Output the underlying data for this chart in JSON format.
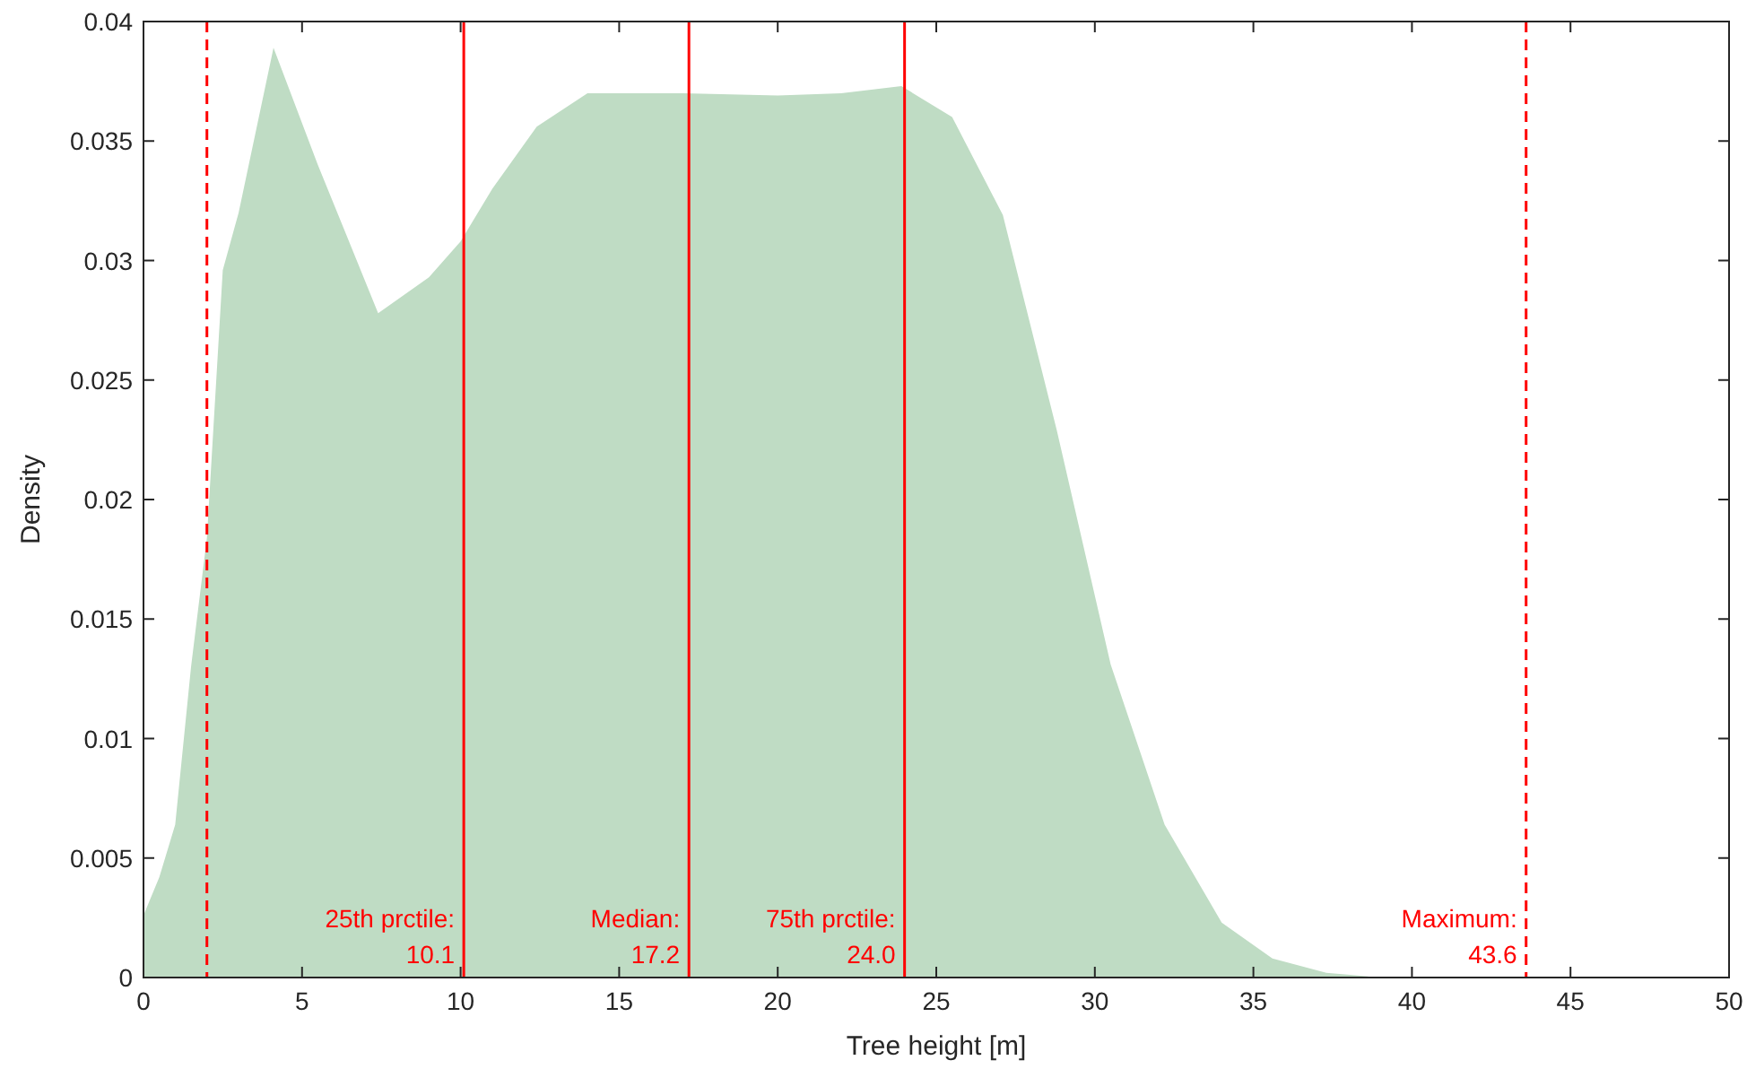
{
  "chart_data": {
    "type": "area",
    "xlabel": "Tree height [m]",
    "ylabel": "Density",
    "xlim": [
      0,
      50
    ],
    "xticks": [
      0,
      5,
      10,
      15,
      20,
      25,
      30,
      35,
      40,
      45,
      50
    ],
    "ylim": [
      0,
      0.04
    ],
    "yticks": [
      0,
      0.005,
      0.01,
      0.015,
      0.02,
      0.025,
      0.03,
      0.035,
      0.04
    ],
    "grid": false,
    "series": [
      {
        "color": "#bfdcc4",
        "x": [
          0,
          0.5,
          1,
          1.5,
          2,
          2.5,
          3,
          4.1,
          5.5,
          7.4,
          9,
          10,
          11,
          12.4,
          14,
          17,
          20,
          22,
          23.9,
          25.5,
          27.1,
          28.8,
          30.5,
          32.2,
          34,
          35.6,
          37.3,
          39,
          42,
          50
        ],
        "values": [
          0.0026,
          0.0042,
          0.0064,
          0.013,
          0.0184,
          0.0296,
          0.032,
          0.0389,
          0.034,
          0.0278,
          0.0293,
          0.0308,
          0.033,
          0.0356,
          0.037,
          0.037,
          0.0369,
          0.037,
          0.0373,
          0.036,
          0.0319,
          0.0229,
          0.0131,
          0.0064,
          0.0023,
          0.0008,
          0.0002,
          0,
          0,
          0
        ]
      }
    ],
    "ref_lines": [
      {
        "axis": "x",
        "value": 2,
        "color": "#ff0000",
        "line_style": "dashed"
      },
      {
        "axis": "x",
        "value": 10.1,
        "label": "25th prctile:\n10.1",
        "color": "#ff0000",
        "line_style": "solid"
      },
      {
        "axis": "x",
        "value": 17.2,
        "label": "Median:\n17.2",
        "color": "#ff0000",
        "line_style": "solid"
      },
      {
        "axis": "x",
        "value": 24.0,
        "label": "75th prctile:\n24.0",
        "color": "#ff0000",
        "line_style": "solid"
      },
      {
        "axis": "x",
        "value": 43.6,
        "label": "Maximum:\n43.6",
        "color": "#ff0000",
        "line_style": "dashed"
      }
    ]
  }
}
